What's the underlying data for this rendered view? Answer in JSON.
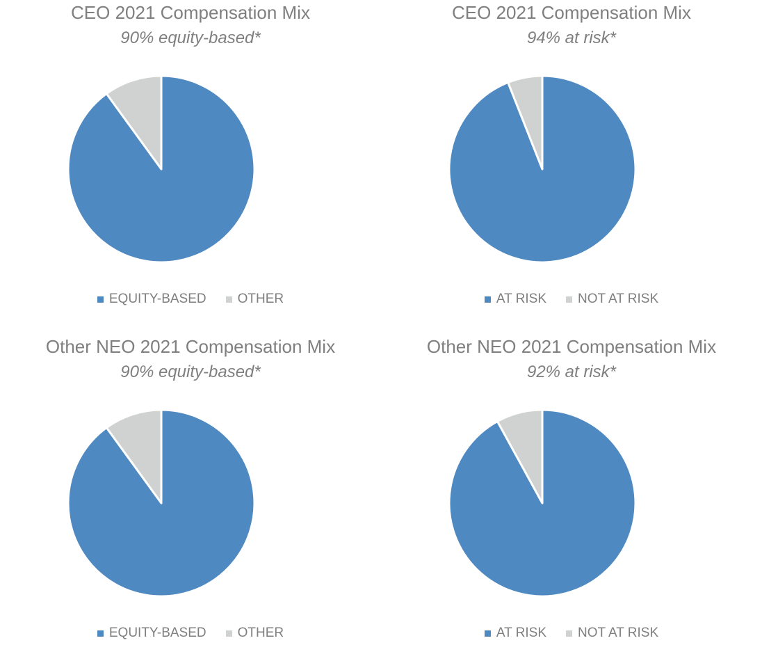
{
  "colors": {
    "primary": "#4f89c2",
    "secondary": "#d0d1d1"
  },
  "chart_data": [
    {
      "type": "pie",
      "title": "CEO 2021 Compensation Mix",
      "subtitle": "90% equity-based*",
      "labels": [
        "EQUITY-BASED",
        "OTHER"
      ],
      "values": [
        90,
        10
      ],
      "colors": [
        "#4f89c2",
        "#d0d1d1"
      ],
      "legend_position": "bottom"
    },
    {
      "type": "pie",
      "title": "CEO 2021 Compensation Mix",
      "subtitle": "94% at risk*",
      "labels": [
        "AT RISK",
        "NOT AT RISK"
      ],
      "values": [
        94,
        6
      ],
      "colors": [
        "#4f89c2",
        "#d0d1d1"
      ],
      "legend_position": "bottom"
    },
    {
      "type": "pie",
      "title": "Other NEO 2021 Compensation Mix",
      "subtitle": "90% equity-based*",
      "labels": [
        "EQUITY-BASED",
        "OTHER"
      ],
      "values": [
        90,
        10
      ],
      "colors": [
        "#4f89c2",
        "#d0d1d1"
      ],
      "legend_position": "bottom"
    },
    {
      "type": "pie",
      "title": "Other NEO 2021 Compensation Mix",
      "subtitle": "92% at risk*",
      "labels": [
        "AT RISK",
        "NOT AT RISK"
      ],
      "values": [
        92,
        8
      ],
      "colors": [
        "#4f89c2",
        "#d0d1d1"
      ],
      "legend_position": "bottom"
    }
  ]
}
